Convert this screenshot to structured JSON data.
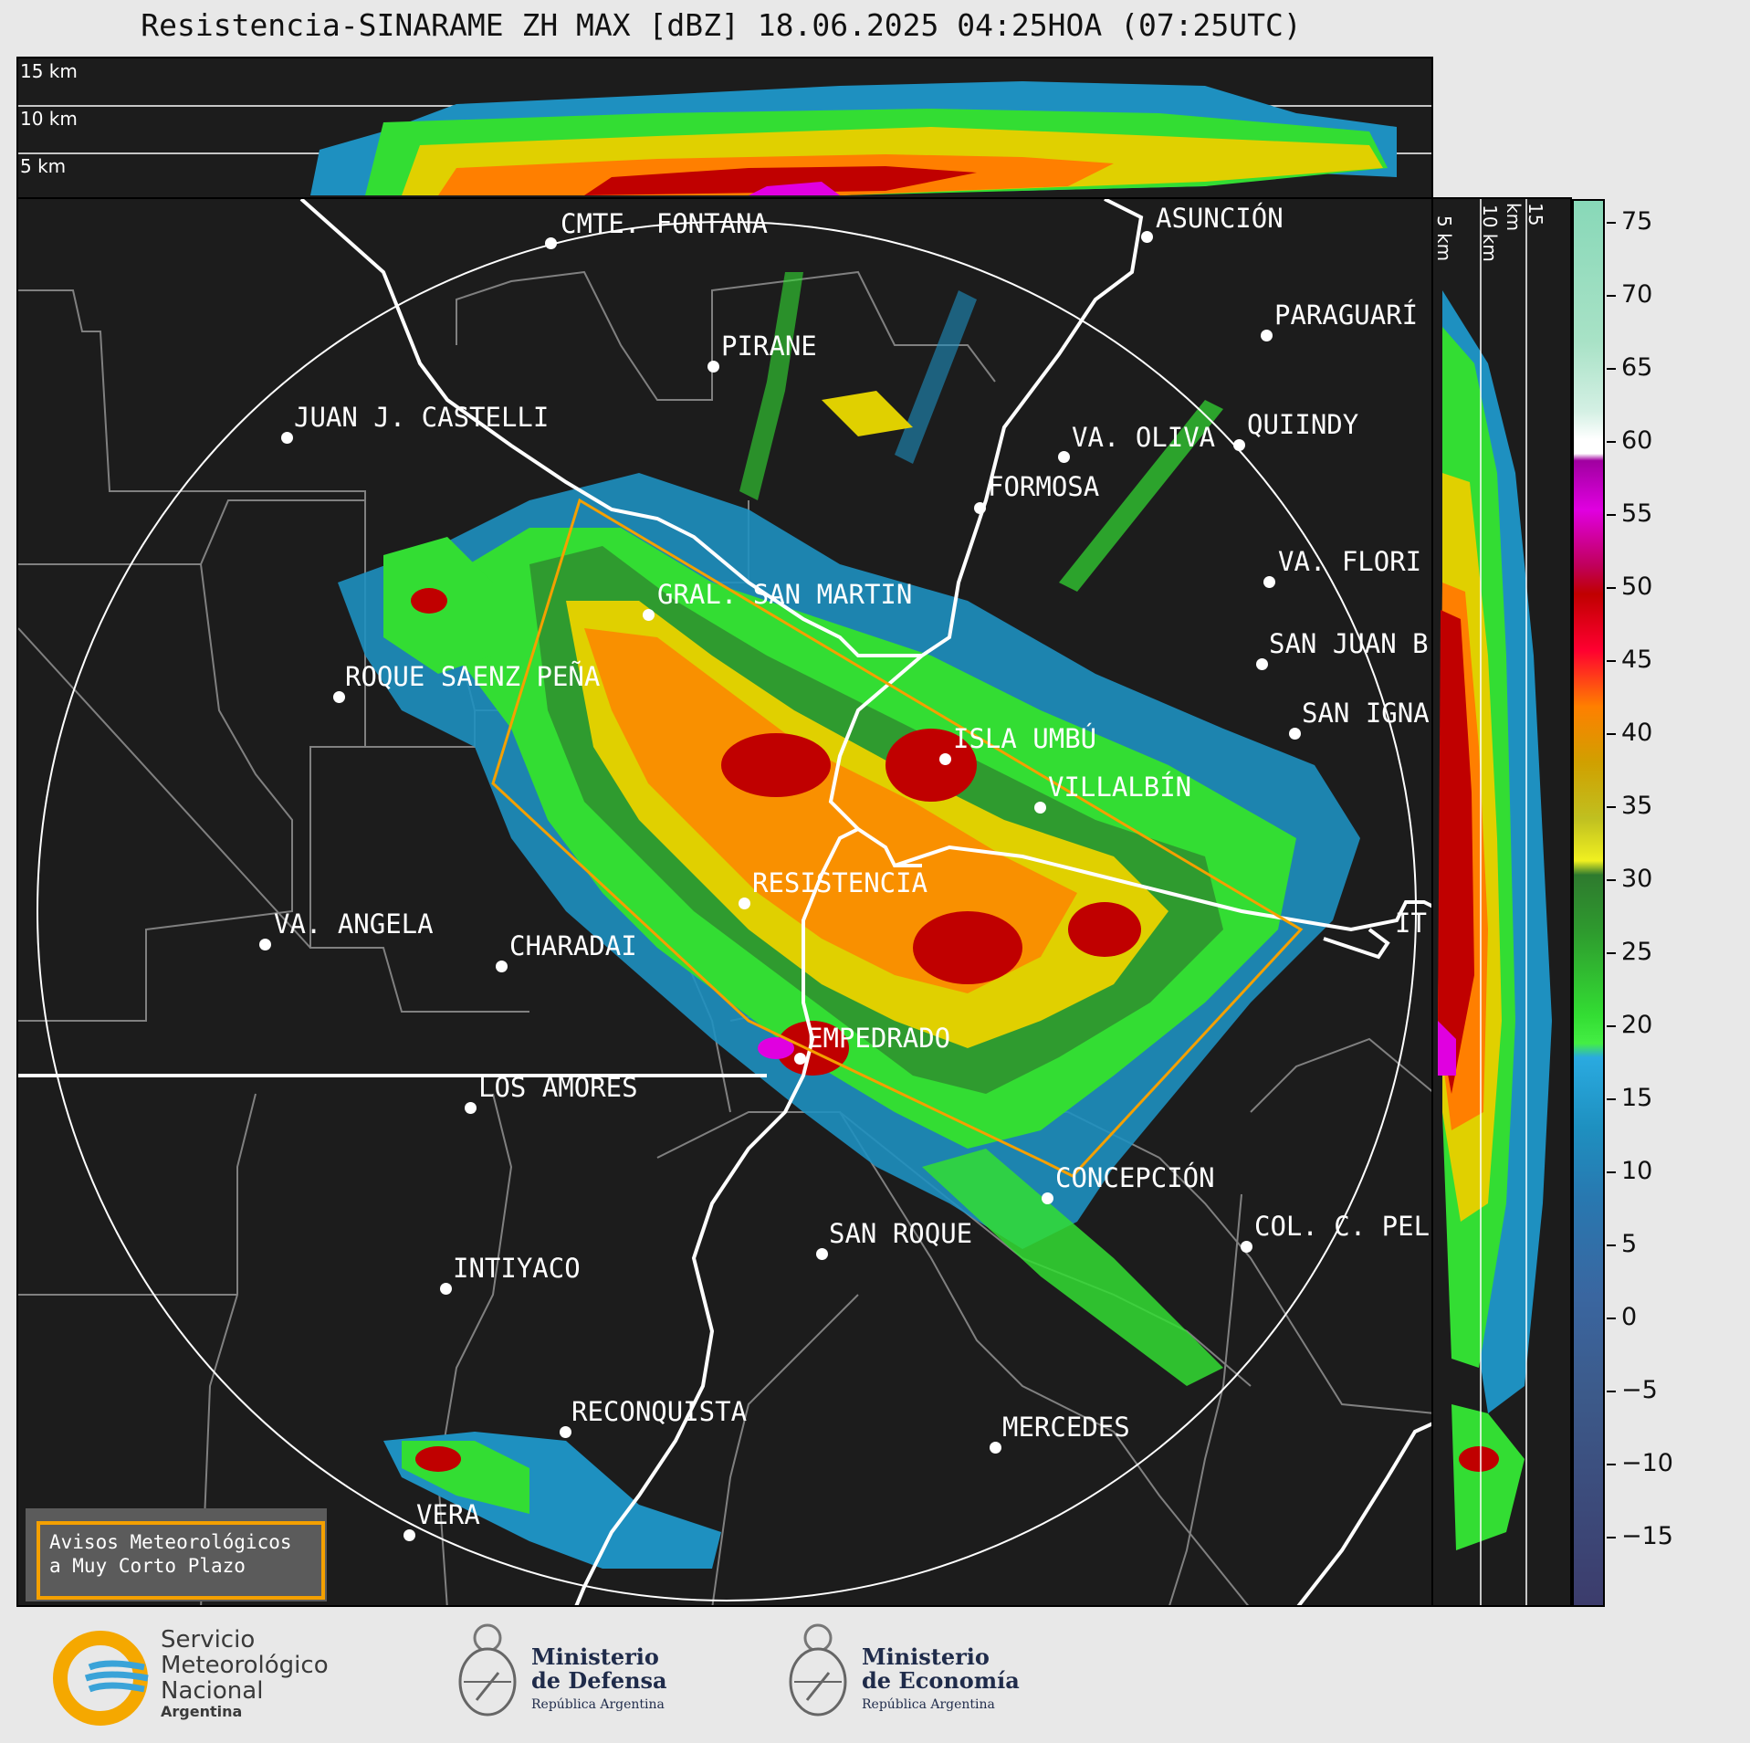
{
  "title": "Resistencia-SINARAME ZH MAX [dBZ] 18.06.2025 04:25HOA (07:25UTC)",
  "top_panel": {
    "height_labels": [
      "15 km",
      "10 km",
      "5 km"
    ]
  },
  "side_panel": {
    "height_labels": [
      "5 km",
      "10 km",
      "15 km"
    ]
  },
  "colorbar": {
    "ticks": [
      "75",
      "70",
      "65",
      "60",
      "55",
      "50",
      "45",
      "40",
      "35",
      "30",
      "25",
      "20",
      "15",
      "10",
      "5",
      "0",
      "−5",
      "−10",
      "−15"
    ],
    "colors": [
      "#88d8b8",
      "#bfe9d6",
      "#ffffff",
      "#e000e0",
      "#c00000",
      "#ff7f00",
      "#e0d000",
      "#2e8b2e",
      "#33dd33",
      "#1e90c0",
      "#3a5a8a",
      "#3c3c6c"
    ]
  },
  "cities": [
    {
      "name": "CMTE. FONTANA"
    },
    {
      "name": "ASUNCIÓN"
    },
    {
      "name": "PARAGUARÍ"
    },
    {
      "name": "PIRANE"
    },
    {
      "name": "JUAN J. CASTELLI"
    },
    {
      "name": "VA. OLIVA"
    },
    {
      "name": "QUIINDY"
    },
    {
      "name": "FORMOSA"
    },
    {
      "name": "VA. FLORI"
    },
    {
      "name": "GRAL. SAN MARTIN"
    },
    {
      "name": "SAN JUAN B"
    },
    {
      "name": "ROQUE SAENZ PEÑA"
    },
    {
      "name": "SAN IGNA"
    },
    {
      "name": "ISLA UMBÚ"
    },
    {
      "name": "VILLALBÍN"
    },
    {
      "name": "RESISTENCIA"
    },
    {
      "name": "IT"
    },
    {
      "name": "VA. ANGELA"
    },
    {
      "name": "CHARADAI"
    },
    {
      "name": "EMPEDRADO"
    },
    {
      "name": "LOS AMORES"
    },
    {
      "name": "CONCEPCIÓN"
    },
    {
      "name": "SAN ROQUE"
    },
    {
      "name": "COL. C. PEL"
    },
    {
      "name": "INTIYACO"
    },
    {
      "name": "RECONQUISTA"
    },
    {
      "name": "MERCEDES"
    },
    {
      "name": "VERA"
    }
  ],
  "alert_box": {
    "line1": "Avisos Meteorológicos",
    "line2": "a Muy Corto Plazo"
  },
  "logos": {
    "smn": {
      "line1": "Servicio",
      "line2": "Meteorológico",
      "line3": "Nacional",
      "line4": "Argentina"
    },
    "defensa": {
      "line1": "Ministerio",
      "line2": "de Defensa",
      "line3": "República Argentina"
    },
    "economia": {
      "line1": "Ministerio",
      "line2": "de Economía",
      "line3": "República Argentina"
    }
  }
}
